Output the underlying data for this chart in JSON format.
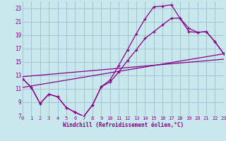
{
  "xlabel": "Windchill (Refroidissement éolien,°C)",
  "bg_color": "#c8e8ee",
  "grid_color": "#9bbfcc",
  "line_color": "#880088",
  "xlim": [
    0,
    23
  ],
  "ylim": [
    7,
    24
  ],
  "xticks": [
    0,
    1,
    2,
    3,
    4,
    5,
    6,
    7,
    8,
    9,
    10,
    11,
    12,
    13,
    14,
    15,
    16,
    17,
    18,
    19,
    20,
    21,
    22,
    23
  ],
  "yticks": [
    7,
    9,
    11,
    13,
    15,
    17,
    19,
    21,
    23
  ],
  "curve1_x": [
    0,
    1,
    2,
    3,
    4,
    5,
    6,
    7,
    8,
    9,
    10,
    11,
    12,
    13,
    14,
    15,
    16,
    17,
    18,
    19,
    20,
    21,
    22,
    23
  ],
  "curve1_y": [
    12.5,
    11.2,
    8.8,
    10.2,
    9.8,
    8.2,
    7.5,
    6.9,
    8.6,
    11.3,
    12.3,
    14.5,
    16.8,
    19.2,
    21.4,
    23.2,
    23.3,
    23.5,
    21.5,
    19.5,
    19.4,
    19.5,
    18.0,
    16.2
  ],
  "curve2_x": [
    0,
    1,
    2,
    3,
    4,
    5,
    6,
    7,
    8,
    9,
    10,
    11,
    12,
    13,
    14,
    15,
    16,
    17,
    18,
    19,
    20,
    21,
    22,
    23
  ],
  "curve2_y": [
    12.5,
    11.2,
    8.8,
    10.2,
    9.8,
    8.2,
    7.5,
    6.9,
    8.6,
    11.3,
    12.0,
    13.5,
    15.2,
    16.8,
    18.5,
    19.5,
    20.5,
    21.5,
    21.5,
    20.0,
    19.4,
    19.5,
    18.0,
    16.2
  ],
  "line1_x": [
    0,
    23
  ],
  "line1_y": [
    11.2,
    16.2
  ],
  "line2_x": [
    0,
    23
  ],
  "line2_y": [
    12.8,
    15.4
  ]
}
